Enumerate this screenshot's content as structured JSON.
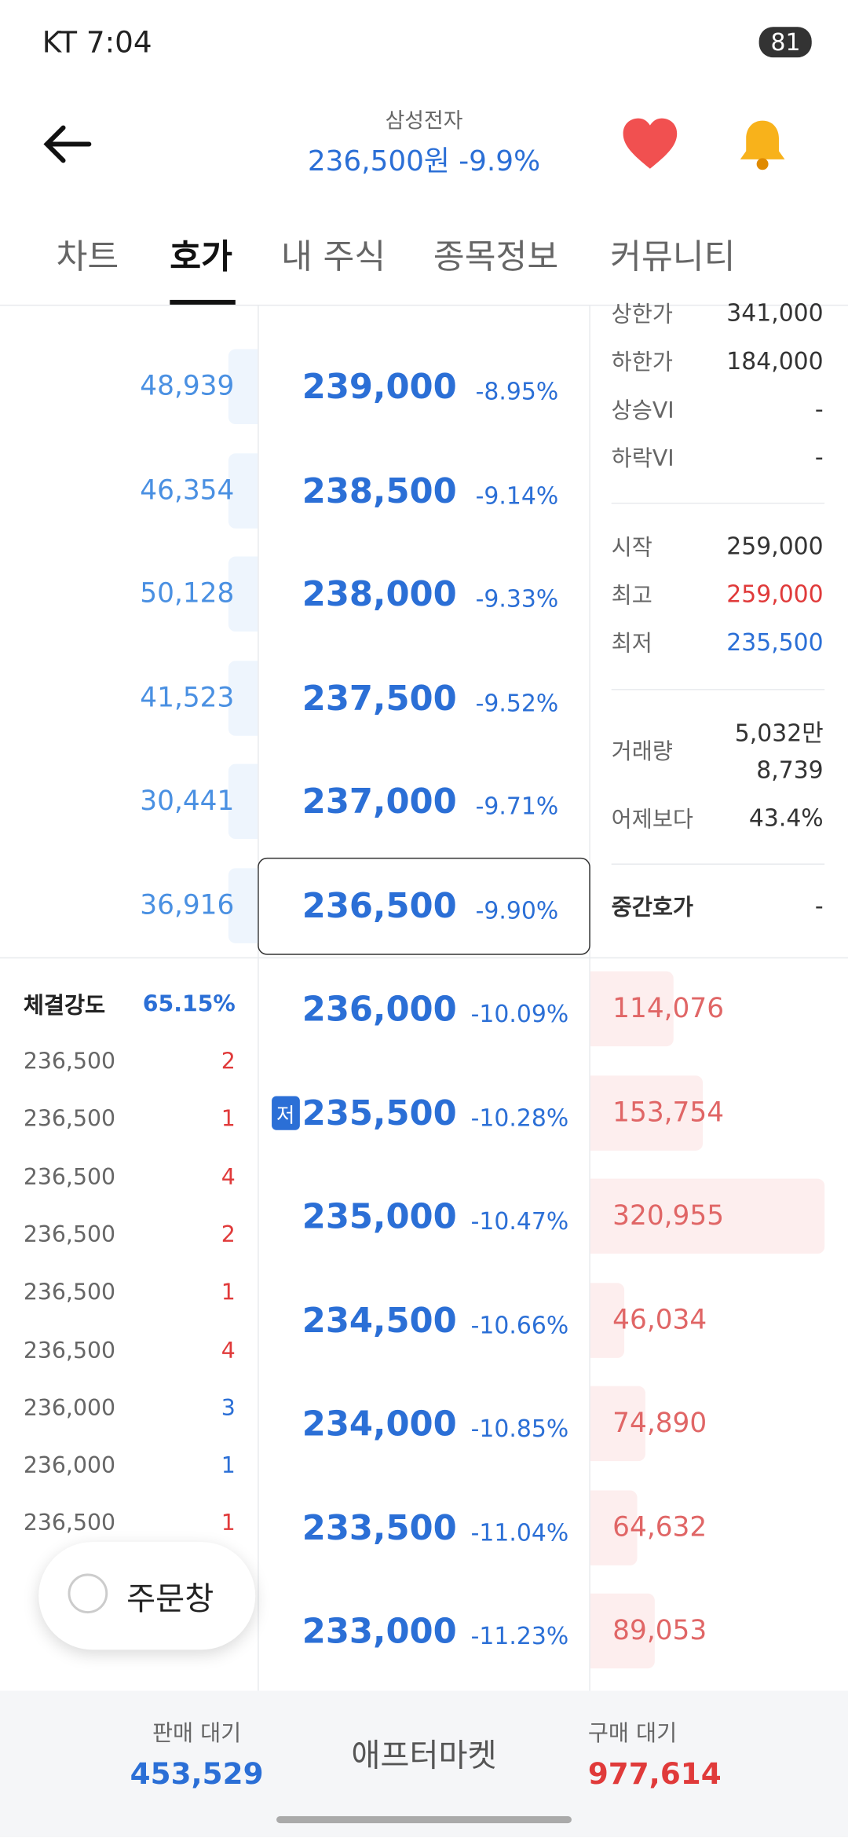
{
  "status_bar": {
    "carrier_time": "KT 7:04",
    "battery": "81"
  },
  "header": {
    "title": "삼성전자",
    "price_line": "236,500원 -9.9%"
  },
  "tabs": [
    "차트",
    "호가",
    "내 주식",
    "종목정보",
    "커뮤니티"
  ],
  "asks": [
    [
      "48,939",
      "239,000",
      "-8.95%"
    ],
    [
      "46,354",
      "238,500",
      "-9.14%"
    ],
    [
      "50,128",
      "238,000",
      "-9.33%"
    ],
    [
      "41,523",
      "237,500",
      "-9.52%"
    ],
    [
      "30,441",
      "237,000",
      "-9.71%"
    ],
    [
      "36,916",
      "236,500",
      "-9.90%"
    ]
  ],
  "bids": [
    [
      "236,000",
      "-10.09%",
      "114,076"
    ],
    [
      "235,500",
      "-10.28%",
      "153,754"
    ],
    [
      "235,000",
      "-10.47%",
      "320,955"
    ],
    [
      "234,500",
      "-10.66%",
      "46,034"
    ],
    [
      "234,000",
      "-10.85%",
      "74,890"
    ],
    [
      "233,500",
      "-11.04%",
      "64,632"
    ],
    [
      "233,000",
      "-11.23%",
      "89,053"
    ]
  ],
  "low_badge": "저",
  "info": {
    "top": [
      [
        "상한가",
        "341,000"
      ],
      [
        "하한가",
        "184,000"
      ],
      [
        "상승VI",
        "-"
      ],
      [
        "하락VI",
        "-"
      ]
    ],
    "mid": [
      [
        "시작",
        "259,000"
      ],
      [
        "최고",
        "259,000"
      ],
      [
        "최저",
        "235,500"
      ]
    ],
    "volume_label": "거래량",
    "volume": [
      "5,032만",
      "8,739"
    ],
    "vs_yesterday": [
      "어제보다",
      "43.4%"
    ],
    "mid_quote": [
      "중간호가",
      "-"
    ]
  },
  "trades": {
    "strength_label": "체결강도",
    "strength": "65.15%",
    "rows": [
      [
        "236,500",
        "2"
      ],
      [
        "236,500",
        "1"
      ],
      [
        "236,500",
        "4"
      ],
      [
        "236,500",
        "2"
      ],
      [
        "236,500",
        "1"
      ],
      [
        "236,500",
        "4"
      ],
      [
        "236,000",
        "3"
      ],
      [
        "236,000",
        "1"
      ],
      [
        "236,500",
        "1"
      ]
    ]
  },
  "order_button": "주문창",
  "footer": {
    "sell_label": "판매 대기",
    "sell": "453,529",
    "market": "애프터마켓",
    "buy_label": "구매 대기",
    "buy": "977,614"
  }
}
